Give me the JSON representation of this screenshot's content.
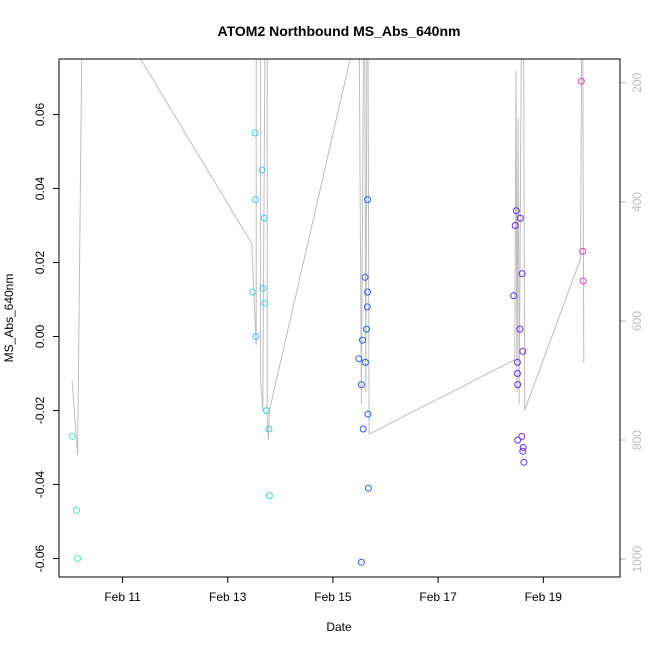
{
  "chart_data": {
    "type": "scatter",
    "title": "ATOM2 Northbound MS_Abs_640nm",
    "xlabel": "Date",
    "ylabel": "MS_Abs_640nm",
    "x_range": [
      "2023-02-09T19:00",
      "2023-02-20T11:00"
    ],
    "x_ticks": [
      {
        "label": "Feb 11",
        "value": "2023-02-11"
      },
      {
        "label": "Feb 13",
        "value": "2023-02-13"
      },
      {
        "label": "Feb 15",
        "value": "2023-02-15"
      },
      {
        "label": "Feb 17",
        "value": "2023-02-17"
      },
      {
        "label": "Feb 19",
        "value": "2023-02-19"
      }
    ],
    "ylim": [
      -0.065,
      0.075
    ],
    "y_ticks": [
      -0.06,
      -0.04,
      -0.02,
      0.0,
      0.02,
      0.04,
      0.06
    ],
    "y_tick_labels": [
      "-0.06",
      "-0.04",
      "-0.02",
      "0.00",
      "0.02",
      "0.04",
      "0.06"
    ],
    "y2lim": [
      1030,
      160
    ],
    "y2_ticks": [
      200,
      400,
      600,
      800,
      1000
    ],
    "y2_tick_labels": [
      "200",
      "400",
      "600",
      "800",
      "1000"
    ],
    "grid": false,
    "line_color": "#bdbdbd",
    "series": [
      {
        "color": "#4de8c3",
        "points": [
          {
            "x": "2023-02-10T01:00",
            "y": -0.027
          },
          {
            "x": "2023-02-10T03:00",
            "y": -0.047
          },
          {
            "x": "2023-02-10T03:30",
            "y": -0.06
          }
        ]
      },
      {
        "color": "#3ed0ea",
        "points": [
          {
            "x": "2023-02-13T11:30",
            "y": 0.012
          },
          {
            "x": "2023-02-13T12:30",
            "y": 0.055
          },
          {
            "x": "2023-02-13T12:40",
            "y": 0.037
          },
          {
            "x": "2023-02-13T12:50",
            "y": 0.0
          },
          {
            "x": "2023-02-13T15:40",
            "y": 0.045
          },
          {
            "x": "2023-02-13T16:00",
            "y": 0.013
          },
          {
            "x": "2023-02-13T16:50",
            "y": 0.009
          },
          {
            "x": "2023-02-13T16:40",
            "y": 0.032
          },
          {
            "x": "2023-02-13T17:40",
            "y": -0.02
          },
          {
            "x": "2023-02-13T18:50",
            "y": -0.025
          },
          {
            "x": "2023-02-13T19:00",
            "y": -0.043
          }
        ]
      },
      {
        "color": "#2a5ee8",
        "points": [
          {
            "x": "2023-02-15T11:50",
            "y": -0.006
          },
          {
            "x": "2023-02-15T13:00",
            "y": -0.013
          },
          {
            "x": "2023-02-15T13:30",
            "y": -0.001
          },
          {
            "x": "2023-02-15T13:00",
            "y": -0.061
          },
          {
            "x": "2023-02-15T13:50",
            "y": -0.025
          },
          {
            "x": "2023-02-15T14:40",
            "y": 0.016
          },
          {
            "x": "2023-02-15T14:50",
            "y": -0.007
          },
          {
            "x": "2023-02-15T15:20",
            "y": 0.002
          },
          {
            "x": "2023-02-15T15:40",
            "y": 0.008
          },
          {
            "x": "2023-02-15T15:50",
            "y": 0.012
          },
          {
            "x": "2023-02-15T15:50",
            "y": 0.037
          },
          {
            "x": "2023-02-15T16:00",
            "y": -0.021
          },
          {
            "x": "2023-02-15T16:10",
            "y": -0.041
          }
        ]
      },
      {
        "color": "#6a2de0",
        "points": [
          {
            "x": "2023-02-18T10:30",
            "y": 0.011
          },
          {
            "x": "2023-02-18T11:10",
            "y": 0.03
          },
          {
            "x": "2023-02-18T11:40",
            "y": 0.034
          },
          {
            "x": "2023-02-18T12:10",
            "y": -0.007
          },
          {
            "x": "2023-02-18T12:10",
            "y": -0.01
          },
          {
            "x": "2023-02-18T12:20",
            "y": -0.013
          },
          {
            "x": "2023-02-18T12:20",
            "y": -0.028
          },
          {
            "x": "2023-02-18T13:20",
            "y": 0.002
          },
          {
            "x": "2023-02-18T13:30",
            "y": 0.032
          },
          {
            "x": "2023-02-18T14:10",
            "y": -0.027
          },
          {
            "x": "2023-02-18T14:20",
            "y": 0.017
          },
          {
            "x": "2023-02-18T14:40",
            "y": -0.004
          },
          {
            "x": "2023-02-18T14:50",
            "y": -0.03
          },
          {
            "x": "2023-02-18T14:40",
            "y": -0.031
          },
          {
            "x": "2023-02-18T15:10",
            "y": -0.034
          }
        ]
      },
      {
        "color": "#d63fd8",
        "points": [
          {
            "x": "2023-02-19T17:20",
            "y": 0.069
          },
          {
            "x": "2023-02-19T18:00",
            "y": 0.023
          },
          {
            "x": "2023-02-19T18:10",
            "y": 0.015
          }
        ]
      }
    ],
    "line_series": [
      {
        "x": "2023-02-10T01:00",
        "y2": 700
      },
      {
        "x": "2023-02-10T03:30",
        "y2": 825
      },
      {
        "x": "2023-02-10T05:30",
        "y2": 110
      },
      {
        "x": "2023-02-11T00:00",
        "y2": 110
      },
      {
        "x": "2023-02-13T11:00",
        "y2": 470
      },
      {
        "x": "2023-02-13T12:00",
        "y2": 560
      },
      {
        "x": "2023-02-13T13:00",
        "y2": 640
      },
      {
        "x": "2023-02-13T13:00",
        "y2": 110
      },
      {
        "x": "2023-02-13T15:00",
        "y2": 110
      },
      {
        "x": "2023-02-13T15:00",
        "y2": 700
      },
      {
        "x": "2023-02-13T16:00",
        "y2": 750
      },
      {
        "x": "2023-02-13T17:00",
        "y2": 110
      },
      {
        "x": "2023-02-13T18:00",
        "y2": 110
      },
      {
        "x": "2023-02-13T18:00",
        "y2": 760
      },
      {
        "x": "2023-02-13T18:30",
        "y2": 800
      },
      {
        "x": "2023-02-13T19:00",
        "y2": 750
      },
      {
        "x": "2023-02-15T11:00",
        "y2": 110
      },
      {
        "x": "2023-02-15T12:00",
        "y2": 110
      },
      {
        "x": "2023-02-15T13:00",
        "y2": 740
      },
      {
        "x": "2023-02-15T14:00",
        "y2": 110
      },
      {
        "x": "2023-02-15T14:30",
        "y2": 110
      },
      {
        "x": "2023-02-15T15:00",
        "y2": 720
      },
      {
        "x": "2023-02-15T15:30",
        "y2": 110
      },
      {
        "x": "2023-02-15T16:00",
        "y2": 110
      },
      {
        "x": "2023-02-15T16:30",
        "y2": 790
      },
      {
        "x": "2023-02-18T11:00",
        "y2": 665
      },
      {
        "x": "2023-02-18T11:30",
        "y2": 180
      },
      {
        "x": "2023-02-18T12:00",
        "y2": 720
      },
      {
        "x": "2023-02-18T12:30",
        "y2": 260
      },
      {
        "x": "2023-02-18T13:00",
        "y2": 740
      },
      {
        "x": "2023-02-18T14:00",
        "y2": 110
      },
      {
        "x": "2023-02-18T15:00",
        "y2": 110
      },
      {
        "x": "2023-02-18T15:30",
        "y2": 750
      },
      {
        "x": "2023-02-19T17:00",
        "y2": 495
      },
      {
        "x": "2023-02-19T17:30",
        "y2": 110
      },
      {
        "x": "2023-02-19T18:00",
        "y2": 110
      },
      {
        "x": "2023-02-19T18:30",
        "y2": 670
      }
    ]
  }
}
